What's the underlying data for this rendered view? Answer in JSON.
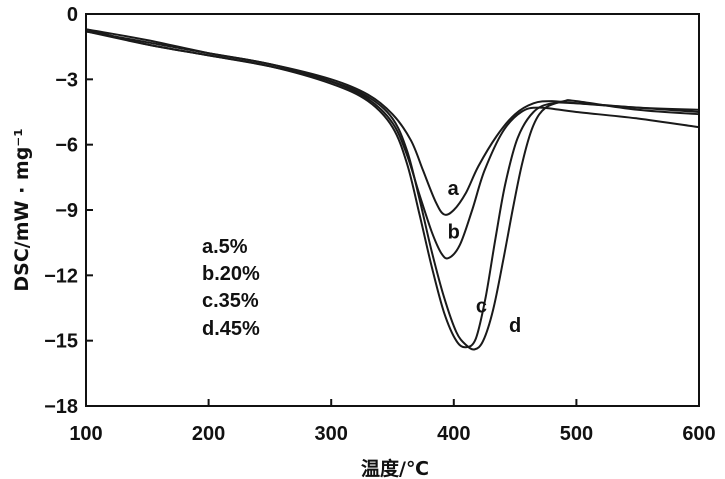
{
  "chart_data": {
    "type": "line",
    "xlabel": "温度/℃",
    "ylabel": "DSC/mW · mg⁻¹",
    "xlim": [
      100,
      600
    ],
    "ylim": [
      -18,
      0
    ],
    "x_ticks": [
      "100",
      "200",
      "300",
      "400",
      "500",
      "600"
    ],
    "y_ticks": [
      "0",
      "−3",
      "−6",
      "−9",
      "−12",
      "−15",
      "−18"
    ],
    "legend": [
      "a.5%",
      "b.20%",
      "c.35%",
      "d.45%"
    ],
    "legend_position": "left-middle",
    "series": [
      {
        "name": "a",
        "points": [
          [
            100,
            -0.8
          ],
          [
            150,
            -1.3
          ],
          [
            200,
            -1.8
          ],
          [
            250,
            -2.3
          ],
          [
            300,
            -3.0
          ],
          [
            330,
            -3.7
          ],
          [
            350,
            -4.6
          ],
          [
            365,
            -5.8
          ],
          [
            375,
            -7.2
          ],
          [
            385,
            -8.6
          ],
          [
            392,
            -9.2
          ],
          [
            400,
            -9.0
          ],
          [
            410,
            -8.2
          ],
          [
            420,
            -7.0
          ],
          [
            435,
            -5.6
          ],
          [
            450,
            -4.6
          ],
          [
            465,
            -4.1
          ],
          [
            480,
            -4.0
          ],
          [
            500,
            -4.1
          ],
          [
            550,
            -4.3
          ],
          [
            600,
            -4.4
          ]
        ]
      },
      {
        "name": "b",
        "points": [
          [
            100,
            -0.7
          ],
          [
            150,
            -1.2
          ],
          [
            200,
            -1.8
          ],
          [
            250,
            -2.3
          ],
          [
            300,
            -3.1
          ],
          [
            330,
            -3.9
          ],
          [
            350,
            -5.0
          ],
          [
            362,
            -6.5
          ],
          [
            372,
            -8.3
          ],
          [
            382,
            -10.0
          ],
          [
            390,
            -11.0
          ],
          [
            396,
            -11.2
          ],
          [
            405,
            -10.6
          ],
          [
            415,
            -9.0
          ],
          [
            425,
            -7.2
          ],
          [
            440,
            -5.4
          ],
          [
            455,
            -4.5
          ],
          [
            470,
            -4.3
          ],
          [
            500,
            -4.5
          ],
          [
            550,
            -4.8
          ],
          [
            600,
            -5.2
          ]
        ]
      },
      {
        "name": "c",
        "points": [
          [
            100,
            -0.8
          ],
          [
            150,
            -1.4
          ],
          [
            200,
            -1.9
          ],
          [
            250,
            -2.4
          ],
          [
            300,
            -3.2
          ],
          [
            330,
            -4.0
          ],
          [
            350,
            -5.2
          ],
          [
            362,
            -6.9
          ],
          [
            372,
            -9.2
          ],
          [
            382,
            -11.6
          ],
          [
            392,
            -13.7
          ],
          [
            402,
            -15.0
          ],
          [
            410,
            -15.3
          ],
          [
            418,
            -14.9
          ],
          [
            426,
            -13.0
          ],
          [
            434,
            -10.3
          ],
          [
            442,
            -7.8
          ],
          [
            452,
            -5.7
          ],
          [
            465,
            -4.5
          ],
          [
            480,
            -4.1
          ],
          [
            500,
            -4.1
          ],
          [
            550,
            -4.3
          ],
          [
            600,
            -4.5
          ]
        ]
      },
      {
        "name": "d",
        "points": [
          [
            100,
            -0.7
          ],
          [
            150,
            -1.4
          ],
          [
            200,
            -1.9
          ],
          [
            250,
            -2.4
          ],
          [
            300,
            -3.1
          ],
          [
            330,
            -3.8
          ],
          [
            350,
            -4.8
          ],
          [
            362,
            -6.3
          ],
          [
            372,
            -8.5
          ],
          [
            382,
            -10.9
          ],
          [
            392,
            -13.0
          ],
          [
            402,
            -14.6
          ],
          [
            410,
            -15.2
          ],
          [
            417,
            -15.4
          ],
          [
            424,
            -15.0
          ],
          [
            432,
            -13.6
          ],
          [
            440,
            -11.4
          ],
          [
            448,
            -9.0
          ],
          [
            456,
            -6.8
          ],
          [
            465,
            -5.1
          ],
          [
            475,
            -4.3
          ],
          [
            490,
            -4.0
          ],
          [
            500,
            -4.0
          ],
          [
            550,
            -4.4
          ],
          [
            600,
            -4.6
          ]
        ]
      }
    ],
    "annotations": [
      {
        "text": "a",
        "x": 395,
        "y": -8.3
      },
      {
        "text": "b",
        "x": 395,
        "y": -10.3
      },
      {
        "text": "c",
        "x": 418,
        "y": -13.7
      },
      {
        "text": "d",
        "x": 445,
        "y": -14.6
      }
    ]
  }
}
